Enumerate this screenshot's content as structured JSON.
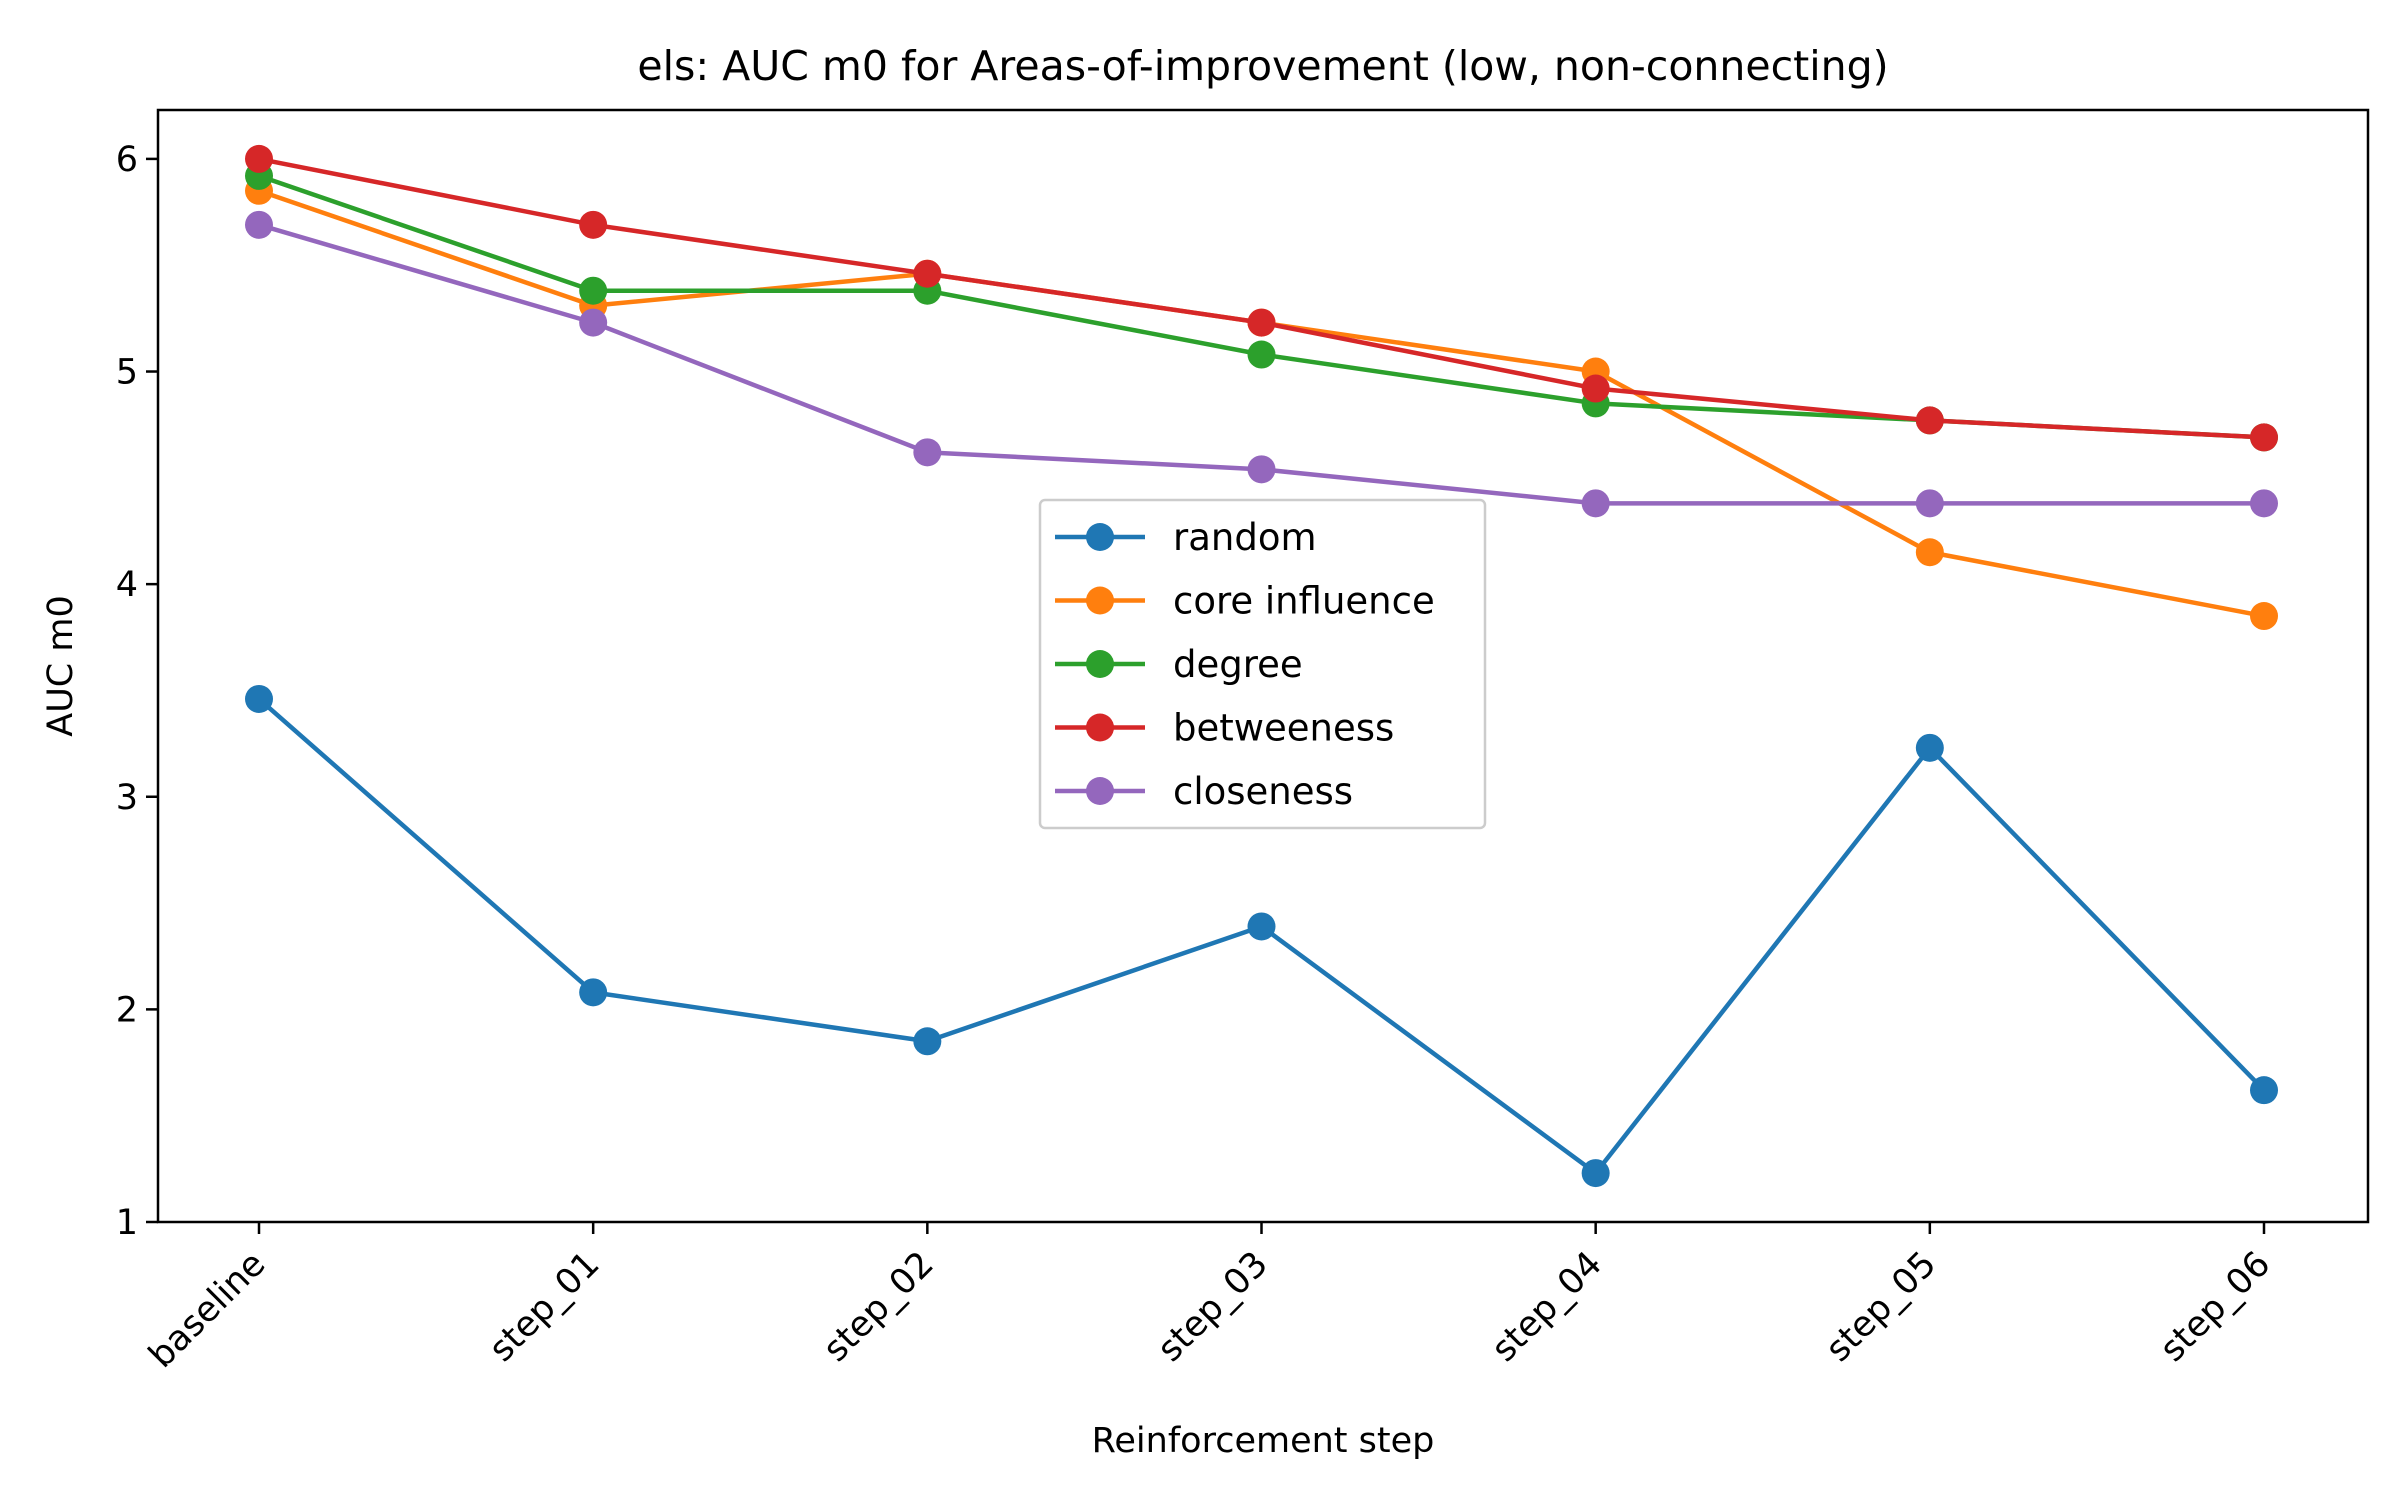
{
  "chart_data": {
    "type": "line",
    "title": "els: AUC m0 for Areas-of-improvement (low, non-connecting)",
    "xlabel": "Reinforcement step",
    "ylabel": "AUC m0",
    "categories": [
      "baseline",
      "step_01",
      "step_02",
      "step_03",
      "step_04",
      "step_05",
      "step_06"
    ],
    "ylim": [
      1,
      6.23
    ],
    "yticks": [
      1,
      2,
      3,
      4,
      5,
      6
    ],
    "grid": false,
    "legend_position": "center",
    "series": [
      {
        "name": "random",
        "color": "#1f77b4",
        "values": [
          3.46,
          2.08,
          1.85,
          2.39,
          1.23,
          3.23,
          1.62
        ]
      },
      {
        "name": "core influence",
        "color": "#ff7f0e",
        "values": [
          5.85,
          5.31,
          5.46,
          5.23,
          5.0,
          4.15,
          3.85
        ]
      },
      {
        "name": "degree",
        "color": "#2ca02c",
        "values": [
          5.92,
          5.38,
          5.38,
          5.08,
          4.85,
          4.77,
          4.69
        ]
      },
      {
        "name": "betweeness",
        "color": "#d62728",
        "values": [
          6.0,
          5.69,
          5.46,
          5.23,
          4.92,
          4.77,
          4.69
        ]
      },
      {
        "name": "closeness",
        "color": "#9467bd",
        "values": [
          5.69,
          5.23,
          4.62,
          4.54,
          4.38,
          4.38,
          4.38
        ]
      }
    ]
  }
}
